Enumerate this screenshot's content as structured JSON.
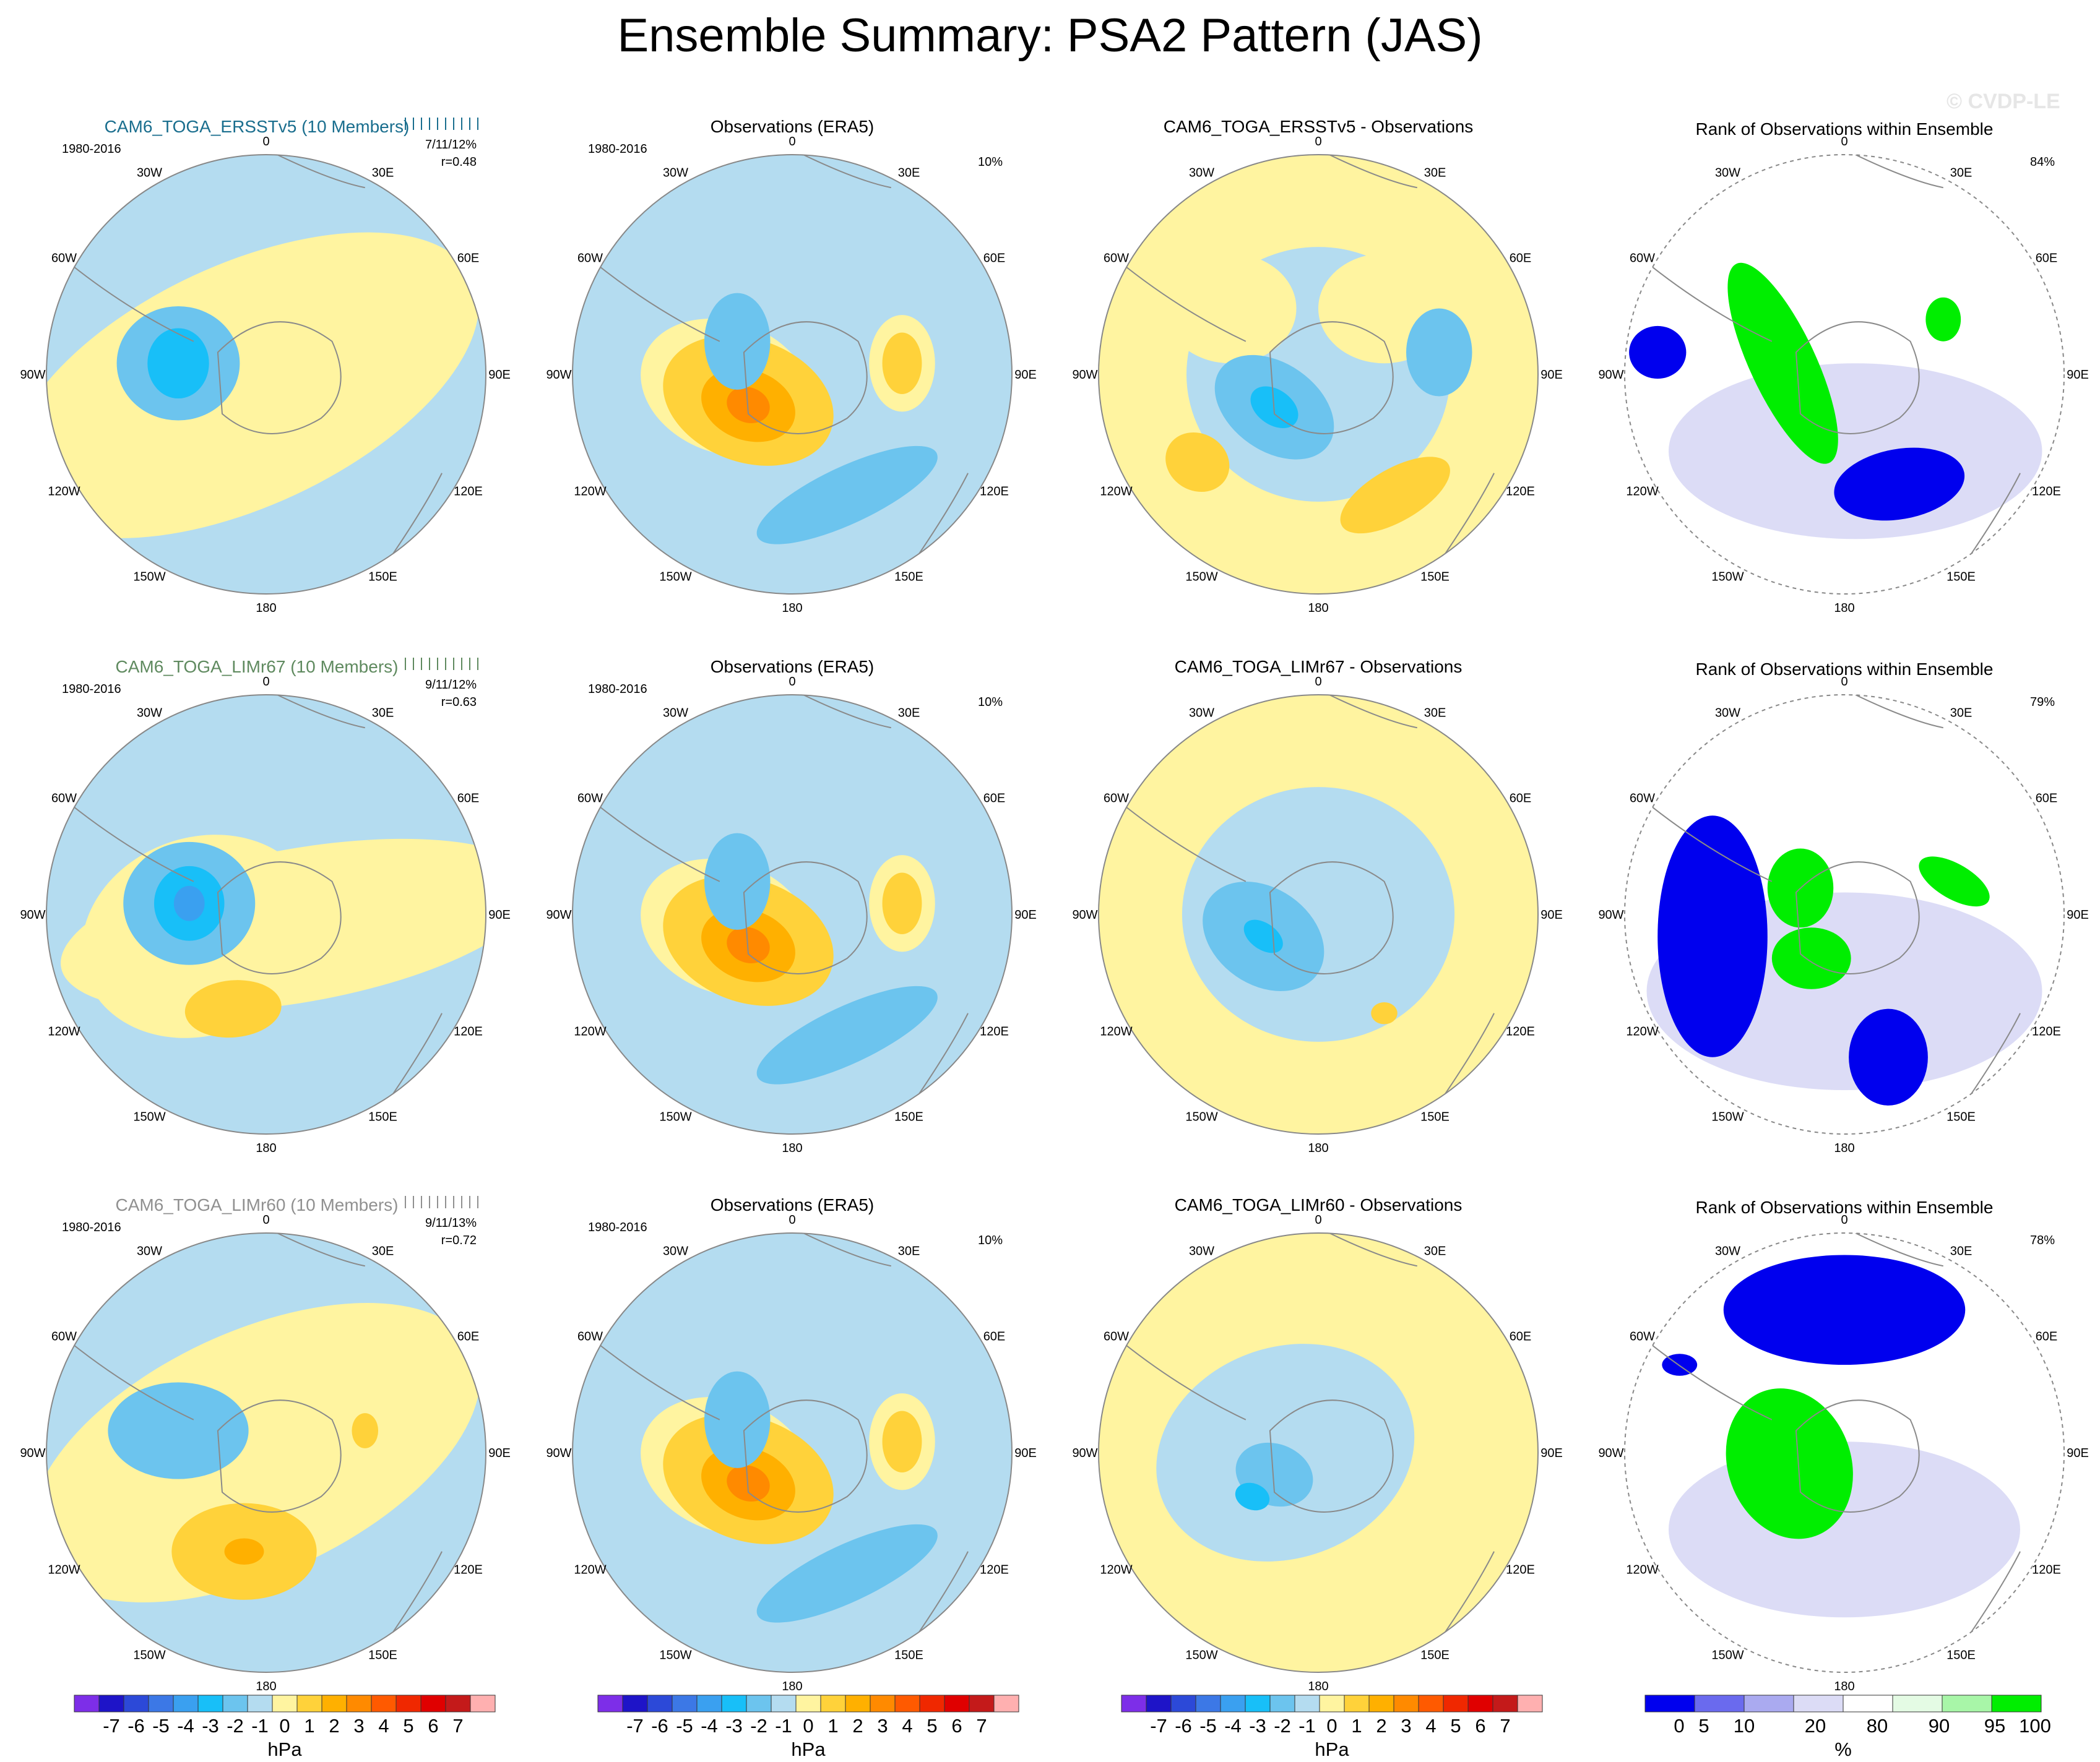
{
  "title": "Ensemble Summary: PSA2 Pattern (JAS)",
  "watermark": "© CVDP-LE",
  "colors": {
    "model_title_row1": "#1a6e8e",
    "model_title_row2": "#5f8a5f",
    "model_title_row3": "#909090",
    "land_line": "#8a8a8a",
    "ocean_light": "#b4dcf0"
  },
  "lon_labels": [
    "0",
    "30E",
    "60E",
    "90E",
    "120E",
    "150E",
    "180",
    "150W",
    "120W",
    "90W",
    "60W",
    "30W"
  ],
  "rows": [
    {
      "model_title": "CAM6_TOGA_ERSSTv5 (10 Members)",
      "period": "1980-2016",
      "stats": "7/11/12%",
      "corr": "r=0.48",
      "obs_title": "Observations (ERA5)",
      "obs_period": "1980-2016",
      "obs_pct": "10%",
      "diff_title": "CAM6_TOGA_ERSSTv5 - Observations",
      "rank_title": "Rank of Observations within Ensemble",
      "rank_pct": "84%"
    },
    {
      "model_title": "CAM6_TOGA_LIMr67 (10 Members)",
      "period": "1980-2016",
      "stats": "9/11/12%",
      "corr": "r=0.63",
      "obs_title": "Observations (ERA5)",
      "obs_period": "1980-2016",
      "obs_pct": "10%",
      "diff_title": "CAM6_TOGA_LIMr67 - Observations",
      "rank_title": "Rank of Observations within Ensemble",
      "rank_pct": "79%"
    },
    {
      "model_title": "CAM6_TOGA_LIMr60 (10 Members)",
      "period": "1980-2016",
      "stats": "9/11/13%",
      "corr": "r=0.72",
      "obs_title": "Observations (ERA5)",
      "obs_period": "1980-2016",
      "obs_pct": "10%",
      "diff_title": "CAM6_TOGA_LIMr60 - Observations",
      "rank_title": "Rank of Observations within Ensemble",
      "rank_pct": "78%"
    }
  ],
  "chart_data": {
    "type": "heatmap",
    "projection": "south polar stereographic",
    "field": "PSA2 sea level pressure regression pattern",
    "units_pattern": "hPa",
    "units_rank": "%",
    "pattern_colorbar": {
      "colors": [
        "#7d2ee8",
        "#1e14c8",
        "#2c49d8",
        "#3c78e6",
        "#3aa0f0",
        "#18bff8",
        "#6cc4ee",
        "#b4dcf0",
        "#fff4a0",
        "#ffd23a",
        "#ffb000",
        "#ff8a00",
        "#ff5a00",
        "#f02800",
        "#e00000",
        "#c41a1a",
        "#ffb0b0"
      ],
      "tick_labels": [
        "-7",
        "-6",
        "-5",
        "-4",
        "-3",
        "-2",
        "-1",
        "0",
        "1",
        "2",
        "3",
        "4",
        "5",
        "6",
        "7"
      ],
      "levels": [
        -7,
        -6,
        -5,
        -4,
        -3,
        -2,
        -1,
        0,
        1,
        2,
        3,
        4,
        5,
        6,
        7
      ]
    },
    "rank_colorbar": {
      "colors": [
        "#0000ee",
        "#6a6aee",
        "#aaaaf0",
        "#dcdcf6",
        "#ffffff",
        "#e4fbe4",
        "#a8f6a8",
        "#00ee00"
      ],
      "tick_labels": [
        "0",
        "5",
        "10",
        "20",
        "80",
        "90",
        "95",
        "100"
      ],
      "levels": [
        0,
        5,
        10,
        20,
        80,
        90,
        95,
        100
      ]
    }
  }
}
